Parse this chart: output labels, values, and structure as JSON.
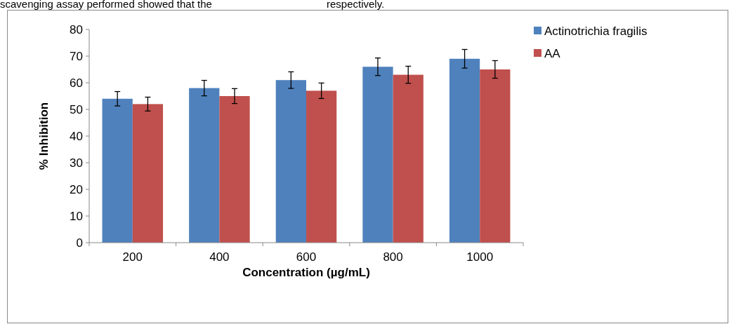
{
  "chart_data": {
    "type": "bar",
    "xlabel": "Concentration (µg/mL)",
    "ylabel": "% Inhibition",
    "categories": [
      "200",
      "400",
      "600",
      "800",
      "1000"
    ],
    "series": [
      {
        "name": "Actinotrichia fragilis",
        "color": "#4f81bd",
        "values": [
          54,
          58,
          61,
          66,
          69
        ],
        "errors": [
          2.7,
          2.9,
          3.1,
          3.3,
          3.5
        ]
      },
      {
        "name": "AA",
        "color": "#c0504d",
        "values": [
          52,
          55,
          57,
          63,
          65
        ],
        "errors": [
          2.6,
          2.8,
          2.9,
          3.2,
          3.3
        ]
      }
    ],
    "ylim": [
      0,
      80
    ],
    "yticks": [
      0,
      10,
      20,
      30,
      40,
      50,
      60,
      70,
      80
    ],
    "grid": false,
    "legend": "right",
    "annotations": [
      "scavenging assay performed showed that the",
      "respectively."
    ]
  }
}
